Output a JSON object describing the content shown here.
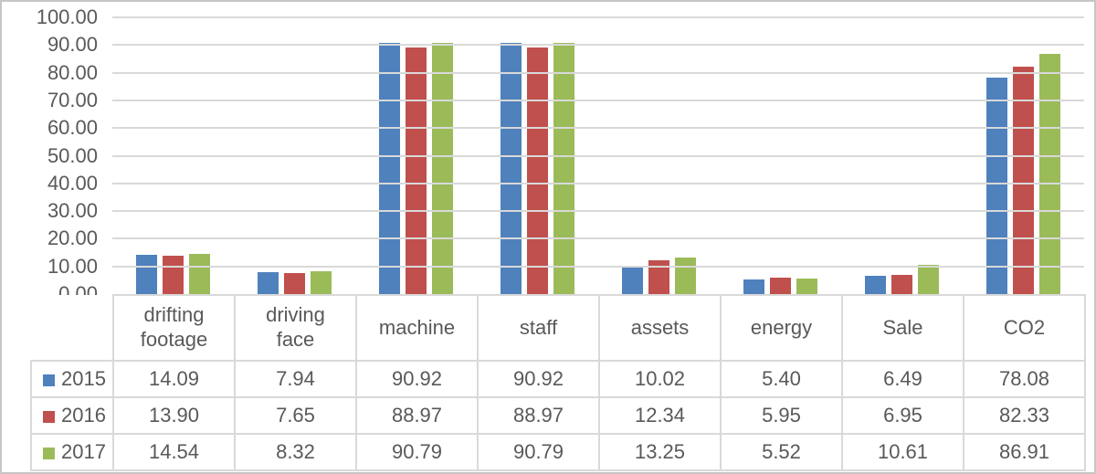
{
  "chart_data": {
    "type": "bar",
    "title": "",
    "xlabel": "",
    "ylabel": "",
    "categories": [
      "drifting footage",
      "driving face",
      "machine",
      "staff",
      "assets",
      "energy",
      "Sale",
      "CO2"
    ],
    "series": [
      {
        "name": "2015",
        "color": "#4F81BD",
        "values": [
          14.09,
          7.94,
          90.92,
          90.92,
          10.02,
          5.4,
          6.49,
          78.08
        ]
      },
      {
        "name": "2016",
        "color": "#C0504D",
        "values": [
          13.9,
          7.65,
          88.97,
          88.97,
          12.34,
          5.95,
          6.95,
          82.33
        ]
      },
      {
        "name": "2017",
        "color": "#9BBB59",
        "values": [
          14.54,
          8.32,
          90.79,
          90.79,
          13.25,
          5.52,
          10.61,
          86.91
        ]
      }
    ],
    "ylim": [
      0,
      100
    ],
    "ytick_step": 10,
    "ytick_labels": [
      "100.00",
      "90.00",
      "80.00",
      "70.00",
      "60.00",
      "50.00",
      "40.00",
      "30.00",
      "20.00",
      "10.00",
      "0.00"
    ],
    "grid": true,
    "legend_position": "data-table-left"
  },
  "table": {
    "header": [
      "drifting footage",
      "driving face",
      "machine",
      "staff",
      "assets",
      "energy",
      "Sale",
      "CO2"
    ],
    "rows": [
      {
        "year": "2015",
        "values": [
          "14.09",
          "7.94",
          "90.92",
          "90.92",
          "10.02",
          "5.40",
          "6.49",
          "78.08"
        ]
      },
      {
        "year": "2016",
        "values": [
          "13.90",
          "7.65",
          "88.97",
          "88.97",
          "12.34",
          "5.95",
          "6.95",
          "82.33"
        ]
      },
      {
        "year": "2017",
        "values": [
          "14.54",
          "8.32",
          "90.79",
          "90.79",
          "13.25",
          "5.52",
          "10.61",
          "86.91"
        ]
      }
    ]
  },
  "colors": {
    "series_2015": "#4F81BD",
    "series_2016": "#C0504D",
    "series_2017": "#9BBB59",
    "gridline": "#d9d9d9",
    "table_border": "#d9d9d9",
    "text": "#595959",
    "frame": "#c6c6c6"
  }
}
